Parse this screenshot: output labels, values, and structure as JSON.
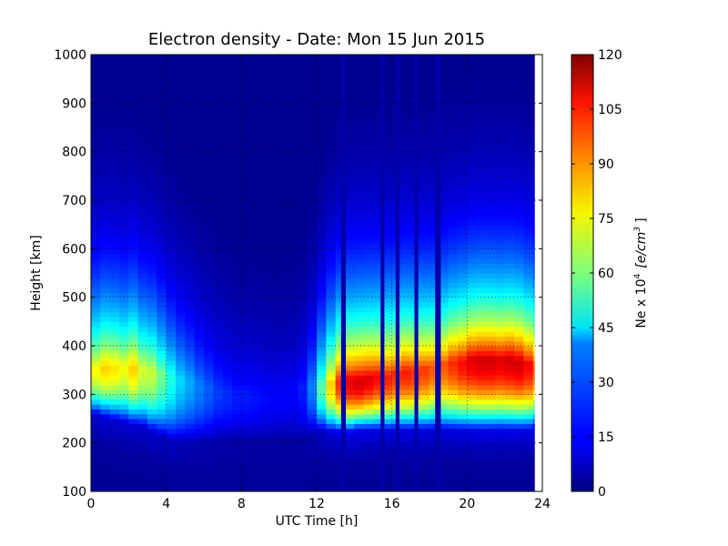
{
  "chart_data": {
    "type": "heatmap",
    "title": "Electron density - Date: Mon 15 Jun 2015",
    "xlabel": "UTC Time [h]",
    "ylabel": "Height [km]",
    "xlim": [
      0,
      24
    ],
    "ylim": [
      100,
      1000
    ],
    "xticks": [
      "0",
      "4",
      "8",
      "12",
      "16",
      "20",
      "24"
    ],
    "yticks": [
      "100",
      "200",
      "300",
      "400",
      "500",
      "600",
      "700",
      "800",
      "900",
      "1000"
    ],
    "grid": true,
    "colormap": "jet",
    "colorbar": {
      "label": "Ne x 10",
      "label_exponent": "4",
      "label_unit": "[e/cm",
      "label_unit_exponent": "3",
      "label_unit_close": "]",
      "range": [
        0,
        120
      ],
      "ticks": [
        "0",
        "15",
        "30",
        "45",
        "60",
        "75",
        "90",
        "105",
        "120"
      ]
    },
    "times_h": [
      0,
      0.5,
      1,
      1.5,
      2,
      2.5,
      3,
      3.5,
      4,
      4.5,
      5,
      5.5,
      6,
      6.5,
      7,
      7.5,
      8,
      8.5,
      9,
      9.5,
      10,
      10.5,
      11,
      11.5,
      12,
      12.5,
      13,
      13.5,
      14,
      14.5,
      15,
      15.5,
      16,
      16.5,
      17,
      17.5,
      18,
      18.5,
      19,
      19.5,
      20,
      20.5,
      21,
      21.5,
      22,
      22.5,
      23,
      23.5
    ],
    "data_end_h": 23.6,
    "profiles": {
      "peak_height_km": [
        355,
        360,
        360,
        360,
        360,
        355,
        350,
        345,
        340,
        335,
        330,
        320,
        315,
        310,
        305,
        300,
        300,
        300,
        300,
        300,
        305,
        310,
        315,
        320,
        320,
        325,
        330,
        330,
        330,
        335,
        340,
        340,
        345,
        350,
        350,
        355,
        360,
        365,
        370,
        370,
        375,
        375,
        375,
        375,
        375,
        370,
        365,
        360
      ],
      "peak_ne_1e4": [
        75,
        80,
        78,
        74,
        80,
        70,
        68,
        58,
        48,
        40,
        35,
        30,
        26,
        22,
        20,
        18,
        18,
        17,
        16,
        15,
        15,
        15,
        18,
        30,
        55,
        80,
        100,
        108,
        110,
        108,
        105,
        102,
        100,
        102,
        100,
        98,
        95,
        95,
        100,
        104,
        108,
        110,
        110,
        108,
        110,
        110,
        105,
        95
      ],
      "bottom_height_km": [
        260,
        255,
        250,
        245,
        240,
        235,
        225,
        215,
        205,
        200,
        200,
        200,
        200,
        200,
        200,
        200,
        200,
        200,
        200,
        200,
        200,
        200,
        205,
        215,
        225,
        225,
        225,
        225,
        230,
        230,
        230,
        230,
        230,
        230,
        230,
        230,
        230,
        230,
        230,
        230,
        230,
        230,
        230,
        230,
        230,
        230,
        230,
        235
      ],
      "dropout_intervals_h": [
        [
          13.3,
          13.55
        ],
        [
          15.4,
          15.6
        ],
        [
          16.2,
          16.4
        ],
        [
          17.2,
          17.4
        ],
        [
          18.3,
          18.6
        ]
      ]
    }
  }
}
